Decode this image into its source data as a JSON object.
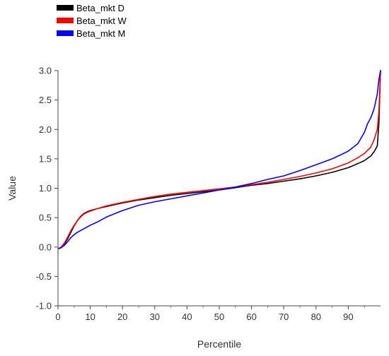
{
  "chart_data": {
    "type": "line",
    "xlabel": "Percentile",
    "ylabel": "Value",
    "xlim": [
      0,
      100
    ],
    "ylim": [
      -1.0,
      3.0
    ],
    "x_ticks": [
      0,
      10,
      20,
      30,
      40,
      50,
      60,
      70,
      80,
      90
    ],
    "y_ticks": [
      "3.0",
      "2.5",
      "2.0",
      "1.5",
      "1.0",
      "0.5",
      "0.0",
      "-0.5",
      "-1.0"
    ],
    "legend_position": "top-left",
    "grid": false,
    "series": [
      {
        "name": "Beta_mkt D",
        "color": "#000000",
        "x": [
          0,
          1,
          2,
          3,
          4,
          5,
          6,
          7,
          8,
          9,
          10,
          12,
          15,
          20,
          25,
          30,
          35,
          40,
          45,
          50,
          55,
          60,
          65,
          70,
          75,
          80,
          85,
          90,
          93,
          95,
          97,
          98,
          99,
          99.5,
          100
        ],
        "y": [
          -0.03,
          -0.01,
          0.05,
          0.14,
          0.25,
          0.36,
          0.45,
          0.52,
          0.57,
          0.6,
          0.62,
          0.65,
          0.69,
          0.75,
          0.8,
          0.84,
          0.88,
          0.91,
          0.94,
          0.97,
          1.01,
          1.05,
          1.08,
          1.12,
          1.16,
          1.21,
          1.27,
          1.35,
          1.42,
          1.47,
          1.55,
          1.62,
          1.72,
          2.1,
          3.0
        ]
      },
      {
        "name": "Beta_mkt W",
        "color": "#ff0000",
        "x": [
          0,
          1,
          2,
          3,
          4,
          5,
          6,
          7,
          8,
          9,
          10,
          12,
          15,
          20,
          25,
          30,
          35,
          40,
          45,
          50,
          55,
          60,
          65,
          70,
          75,
          80,
          85,
          90,
          93,
          95,
          97,
          98,
          99,
          99.5,
          100
        ],
        "y": [
          -0.03,
          0.0,
          0.07,
          0.17,
          0.28,
          0.37,
          0.45,
          0.51,
          0.56,
          0.59,
          0.61,
          0.65,
          0.7,
          0.76,
          0.81,
          0.86,
          0.9,
          0.93,
          0.96,
          0.99,
          1.02,
          1.06,
          1.1,
          1.15,
          1.2,
          1.26,
          1.33,
          1.43,
          1.52,
          1.59,
          1.7,
          1.82,
          2.0,
          2.3,
          3.0
        ]
      },
      {
        "name": "Beta_mkt M",
        "color": "#0000ff",
        "x": [
          0,
          1,
          2,
          3,
          4,
          5,
          6,
          7,
          8,
          9,
          10,
          12,
          15,
          20,
          25,
          30,
          35,
          40,
          45,
          50,
          55,
          60,
          65,
          70,
          75,
          80,
          85,
          90,
          93,
          95,
          96,
          97,
          98,
          99,
          99.5,
          100
        ],
        "y": [
          -0.03,
          -0.01,
          0.03,
          0.09,
          0.16,
          0.21,
          0.25,
          0.28,
          0.31,
          0.34,
          0.37,
          0.42,
          0.51,
          0.62,
          0.71,
          0.77,
          0.82,
          0.87,
          0.92,
          0.97,
          1.02,
          1.08,
          1.15,
          1.21,
          1.3,
          1.4,
          1.5,
          1.63,
          1.76,
          1.95,
          2.1,
          2.2,
          2.35,
          2.6,
          2.85,
          3.0
        ]
      }
    ]
  }
}
